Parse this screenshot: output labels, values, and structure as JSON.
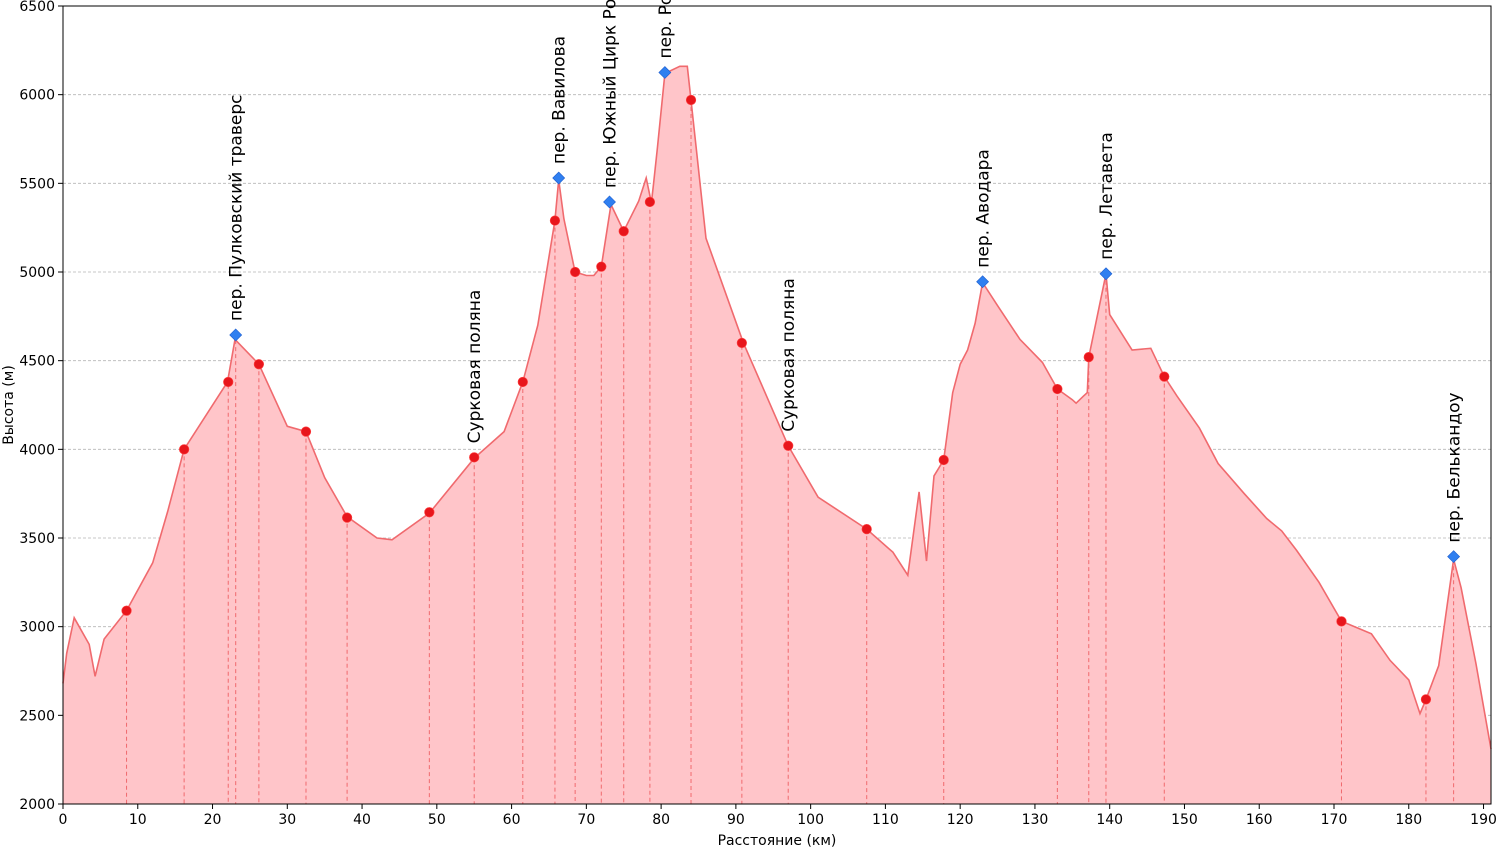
{
  "chart_data": {
    "type": "area",
    "xlabel": "Расстояние (км)",
    "ylabel": "Высота (м)",
    "xlim": [
      0,
      191
    ],
    "ylim": [
      2000,
      6500
    ],
    "xticks": [
      "0",
      "10",
      "20",
      "30",
      "40",
      "50",
      "60",
      "70",
      "80",
      "90",
      "100",
      "110",
      "120",
      "130",
      "140",
      "150",
      "160",
      "170",
      "180",
      "190"
    ],
    "yticks": [
      "2000",
      "2500",
      "3000",
      "3500",
      "4000",
      "4500",
      "5000",
      "5500",
      "6000",
      "6500"
    ],
    "grid": "horizontal dashed",
    "colors": {
      "line": "#f06a6e",
      "fill": "#ffc5c9",
      "point": "#e8161c",
      "pass": "#2f7ff0",
      "grid": "#b5b5b5"
    },
    "profile": [
      [
        0,
        2680
      ],
      [
        0.5,
        2850
      ],
      [
        1.5,
        3050
      ],
      [
        3.5,
        2900
      ],
      [
        4.3,
        2720
      ],
      [
        5.5,
        2930
      ],
      [
        8.5,
        3090
      ],
      [
        12,
        3360
      ],
      [
        14,
        3650
      ],
      [
        16.2,
        4000
      ],
      [
        22,
        4380
      ],
      [
        23,
        4620
      ],
      [
        26.2,
        4480
      ],
      [
        30,
        4130
      ],
      [
        32.5,
        4100
      ],
      [
        35,
        3840
      ],
      [
        38,
        3620
      ],
      [
        42,
        3500
      ],
      [
        44,
        3490
      ],
      [
        49,
        3640
      ],
      [
        55,
        3950
      ],
      [
        59,
        4100
      ],
      [
        61.5,
        4380
      ],
      [
        63.5,
        4700
      ],
      [
        65.8,
        5290
      ],
      [
        66.3,
        5520
      ],
      [
        67,
        5300
      ],
      [
        68.5,
        5000
      ],
      [
        70,
        4980
      ],
      [
        71,
        4980
      ],
      [
        72,
        5030
      ],
      [
        73.3,
        5380
      ],
      [
        75,
        5230
      ],
      [
        77,
        5400
      ],
      [
        78,
        5530
      ],
      [
        78.7,
        5390
      ],
      [
        79,
        5500
      ],
      [
        79.5,
        5700
      ],
      [
        80.5,
        6120
      ],
      [
        82.5,
        6160
      ],
      [
        83.5,
        6160
      ],
      [
        84,
        5970
      ],
      [
        86,
        5190
      ],
      [
        91,
        4600
      ],
      [
        97,
        4020
      ],
      [
        101,
        3730
      ],
      [
        107.5,
        3550
      ],
      [
        111,
        3420
      ],
      [
        113,
        3290
      ],
      [
        114.5,
        3760
      ],
      [
        115.5,
        3370
      ],
      [
        116.5,
        3850
      ],
      [
        117.8,
        3940
      ],
      [
        119,
        4320
      ],
      [
        120,
        4480
      ],
      [
        121,
        4560
      ],
      [
        122,
        4710
      ],
      [
        123,
        4940
      ],
      [
        125,
        4810
      ],
      [
        128,
        4620
      ],
      [
        131,
        4490
      ],
      [
        133,
        4340
      ],
      [
        135,
        4280
      ],
      [
        135.5,
        4260
      ],
      [
        136.5,
        4300
      ],
      [
        137,
        4320
      ],
      [
        137.2,
        4520
      ],
      [
        139.5,
        4990
      ],
      [
        140,
        4760
      ],
      [
        143,
        4560
      ],
      [
        145.5,
        4570
      ],
      [
        147.3,
        4410
      ],
      [
        149,
        4300
      ],
      [
        152,
        4120
      ],
      [
        154.5,
        3920
      ],
      [
        158,
        3750
      ],
      [
        161,
        3610
      ],
      [
        163,
        3540
      ],
      [
        165,
        3430
      ],
      [
        168,
        3250
      ],
      [
        171,
        3030
      ],
      [
        175,
        2960
      ],
      [
        177.5,
        2810
      ],
      [
        180,
        2700
      ],
      [
        181.5,
        2510
      ],
      [
        182.3,
        2590
      ],
      [
        184,
        2780
      ],
      [
        186,
        3380
      ],
      [
        187,
        3220
      ],
      [
        189,
        2790
      ],
      [
        191,
        2310
      ]
    ],
    "points": [
      [
        8.5,
        3090
      ],
      [
        16.2,
        4000
      ],
      [
        22.1,
        4380
      ],
      [
        26.2,
        4480
      ],
      [
        32.5,
        4100
      ],
      [
        38,
        3615
      ],
      [
        49,
        3645
      ],
      [
        55,
        3955
      ],
      [
        61.5,
        4380
      ],
      [
        65.8,
        5290
      ],
      [
        68.5,
        5000
      ],
      [
        72,
        5030
      ],
      [
        75,
        5230
      ],
      [
        78.5,
        5395
      ],
      [
        84,
        5970
      ],
      [
        90.8,
        4600
      ],
      [
        97,
        4020
      ],
      [
        107.5,
        3550
      ],
      [
        117.8,
        3940
      ],
      [
        133,
        4340
      ],
      [
        137.2,
        4520
      ],
      [
        147.3,
        4410
      ],
      [
        171,
        3030
      ],
      [
        182.3,
        2590
      ]
    ],
    "passes": [
      {
        "name": "пер. Пулковский траверс",
        "x": 23.1,
        "y": 4645
      },
      {
        "name": "пер. Вавилова",
        "x": 66.3,
        "y": 5530
      },
      {
        "name": "пер. Южный Цирк России",
        "x": 73.1,
        "y": 5395
      },
      {
        "name": "пер. Россия",
        "x": 80.5,
        "y": 6125
      },
      {
        "name": "пер. Аводара",
        "x": 123,
        "y": 4945
      },
      {
        "name": "пер. Летавета",
        "x": 139.5,
        "y": 4990
      },
      {
        "name": "пер. Белькандоу",
        "x": 186,
        "y": 3395
      }
    ],
    "place_labels": [
      {
        "name": "Сурковая поляна",
        "x": 55,
        "y": 3955
      },
      {
        "name": "Сурковая поляна",
        "x": 97,
        "y": 4020
      }
    ],
    "drop_lines_x": [
      8.5,
      16.2,
      22.1,
      23.1,
      26.2,
      32.5,
      38,
      49,
      55,
      61.5,
      65.8,
      68.5,
      72,
      75,
      78.5,
      84,
      90.8,
      97,
      107.5,
      117.8,
      133,
      137.2,
      139.5,
      147.3,
      171,
      182.3,
      186
    ]
  }
}
